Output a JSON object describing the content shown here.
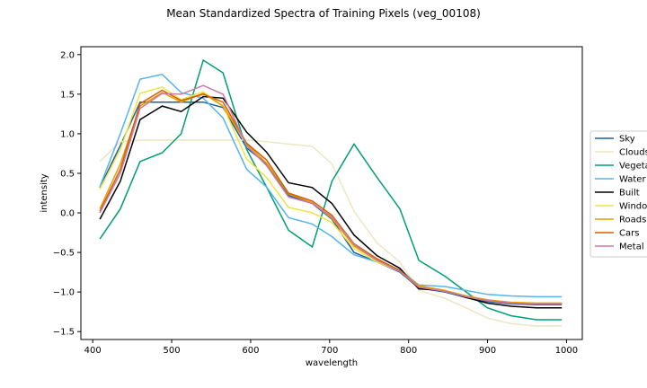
{
  "chart_data": {
    "type": "line",
    "title": "Mean Standardized Spectra of Training Pixels (veg_00108)",
    "xlabel": "wavelength",
    "ylabel": "intensity",
    "xlim": [
      385,
      1020
    ],
    "ylim": [
      -1.6,
      2.1
    ],
    "xticks": [
      400,
      500,
      600,
      700,
      800,
      900,
      1000
    ],
    "yticks": [
      -1.5,
      -1.0,
      -0.5,
      0.0,
      0.5,
      1.0,
      1.5,
      2.0
    ],
    "ytick_labels": [
      "−1.5",
      "−1.0",
      "−0.5",
      "0.0",
      "0.5",
      "1.0",
      "1.5",
      "2.0"
    ],
    "grid": false,
    "legend_position": "center-right-outside",
    "x": [
      409,
      435,
      460,
      488,
      512,
      540,
      565,
      595,
      620,
      648,
      678,
      703,
      731,
      760,
      789,
      813,
      846,
      873,
      900,
      930,
      962,
      994
    ],
    "series": [
      {
        "name": "Sky",
        "color": "#1f5fa0",
        "values": [
          0.32,
          0.85,
          1.4,
          1.4,
          1.4,
          1.4,
          1.33,
          0.82,
          0.62,
          0.22,
          0.12,
          -0.08,
          -0.5,
          -0.62,
          -0.75,
          -0.95,
          -1.0,
          -1.07,
          -1.12,
          -1.15,
          -1.16,
          -1.16
        ]
      },
      {
        "name": "Clouds",
        "color": "#ece6c2",
        "values": [
          0.65,
          0.9,
          0.92,
          0.92,
          0.92,
          0.92,
          0.92,
          0.92,
          0.9,
          0.87,
          0.84,
          0.62,
          0.02,
          -0.38,
          -0.62,
          -0.98,
          -1.08,
          -1.2,
          -1.33,
          -1.4,
          -1.43,
          -1.43
        ]
      },
      {
        "name": "Vegetation",
        "color": "#009e73",
        "values": [
          -0.33,
          0.05,
          0.65,
          0.76,
          1.0,
          1.93,
          1.77,
          0.8,
          0.33,
          -0.22,
          -0.43,
          0.4,
          0.87,
          0.45,
          0.05,
          -0.6,
          -0.8,
          -1.0,
          -1.2,
          -1.3,
          -1.35,
          -1.35
        ]
      },
      {
        "name": "Water",
        "color": "#56b4e9",
        "values": [
          0.33,
          1.0,
          1.69,
          1.75,
          1.52,
          1.45,
          1.2,
          0.55,
          0.33,
          -0.06,
          -0.14,
          -0.3,
          -0.53,
          -0.62,
          -0.72,
          -0.91,
          -0.93,
          -0.98,
          -1.03,
          -1.05,
          -1.06,
          -1.06
        ]
      },
      {
        "name": "Built",
        "color": "#000000",
        "values": [
          -0.08,
          0.4,
          1.18,
          1.35,
          1.28,
          1.47,
          1.45,
          1.02,
          0.77,
          0.38,
          0.32,
          0.12,
          -0.28,
          -0.54,
          -0.7,
          -0.96,
          -0.98,
          -1.07,
          -1.14,
          -1.18,
          -1.2,
          -1.2
        ]
      },
      {
        "name": "Windows",
        "color": "#f0e442",
        "values": [
          0.3,
          0.8,
          1.51,
          1.59,
          1.43,
          1.53,
          1.35,
          0.68,
          0.45,
          0.07,
          0.0,
          -0.12,
          -0.45,
          -0.62,
          -0.74,
          -0.93,
          -0.98,
          -1.05,
          -1.1,
          -1.13,
          -1.14,
          -1.14
        ]
      },
      {
        "name": "Roads",
        "color": "#e69f00",
        "values": [
          0.05,
          0.62,
          1.35,
          1.52,
          1.4,
          1.51,
          1.35,
          0.87,
          0.63,
          0.24,
          0.13,
          -0.07,
          -0.42,
          -0.6,
          -0.73,
          -0.92,
          -0.98,
          -1.05,
          -1.1,
          -1.13,
          -1.14,
          -1.14
        ]
      },
      {
        "name": "Cars",
        "color": "#d55e00",
        "values": [
          0.02,
          0.55,
          1.38,
          1.55,
          1.42,
          1.5,
          1.4,
          0.88,
          0.67,
          0.25,
          0.15,
          -0.03,
          -0.39,
          -0.58,
          -0.73,
          -0.94,
          -0.99,
          -1.06,
          -1.11,
          -1.14,
          -1.15,
          -1.15
        ]
      },
      {
        "name": "Metal",
        "color": "#cc79a7",
        "values": [
          0.0,
          0.5,
          1.32,
          1.51,
          1.5,
          1.61,
          1.5,
          0.85,
          0.6,
          0.2,
          0.12,
          -0.05,
          -0.4,
          -0.6,
          -0.74,
          -0.94,
          -0.99,
          -1.06,
          -1.11,
          -1.14,
          -1.15,
          -1.15
        ]
      }
    ]
  }
}
